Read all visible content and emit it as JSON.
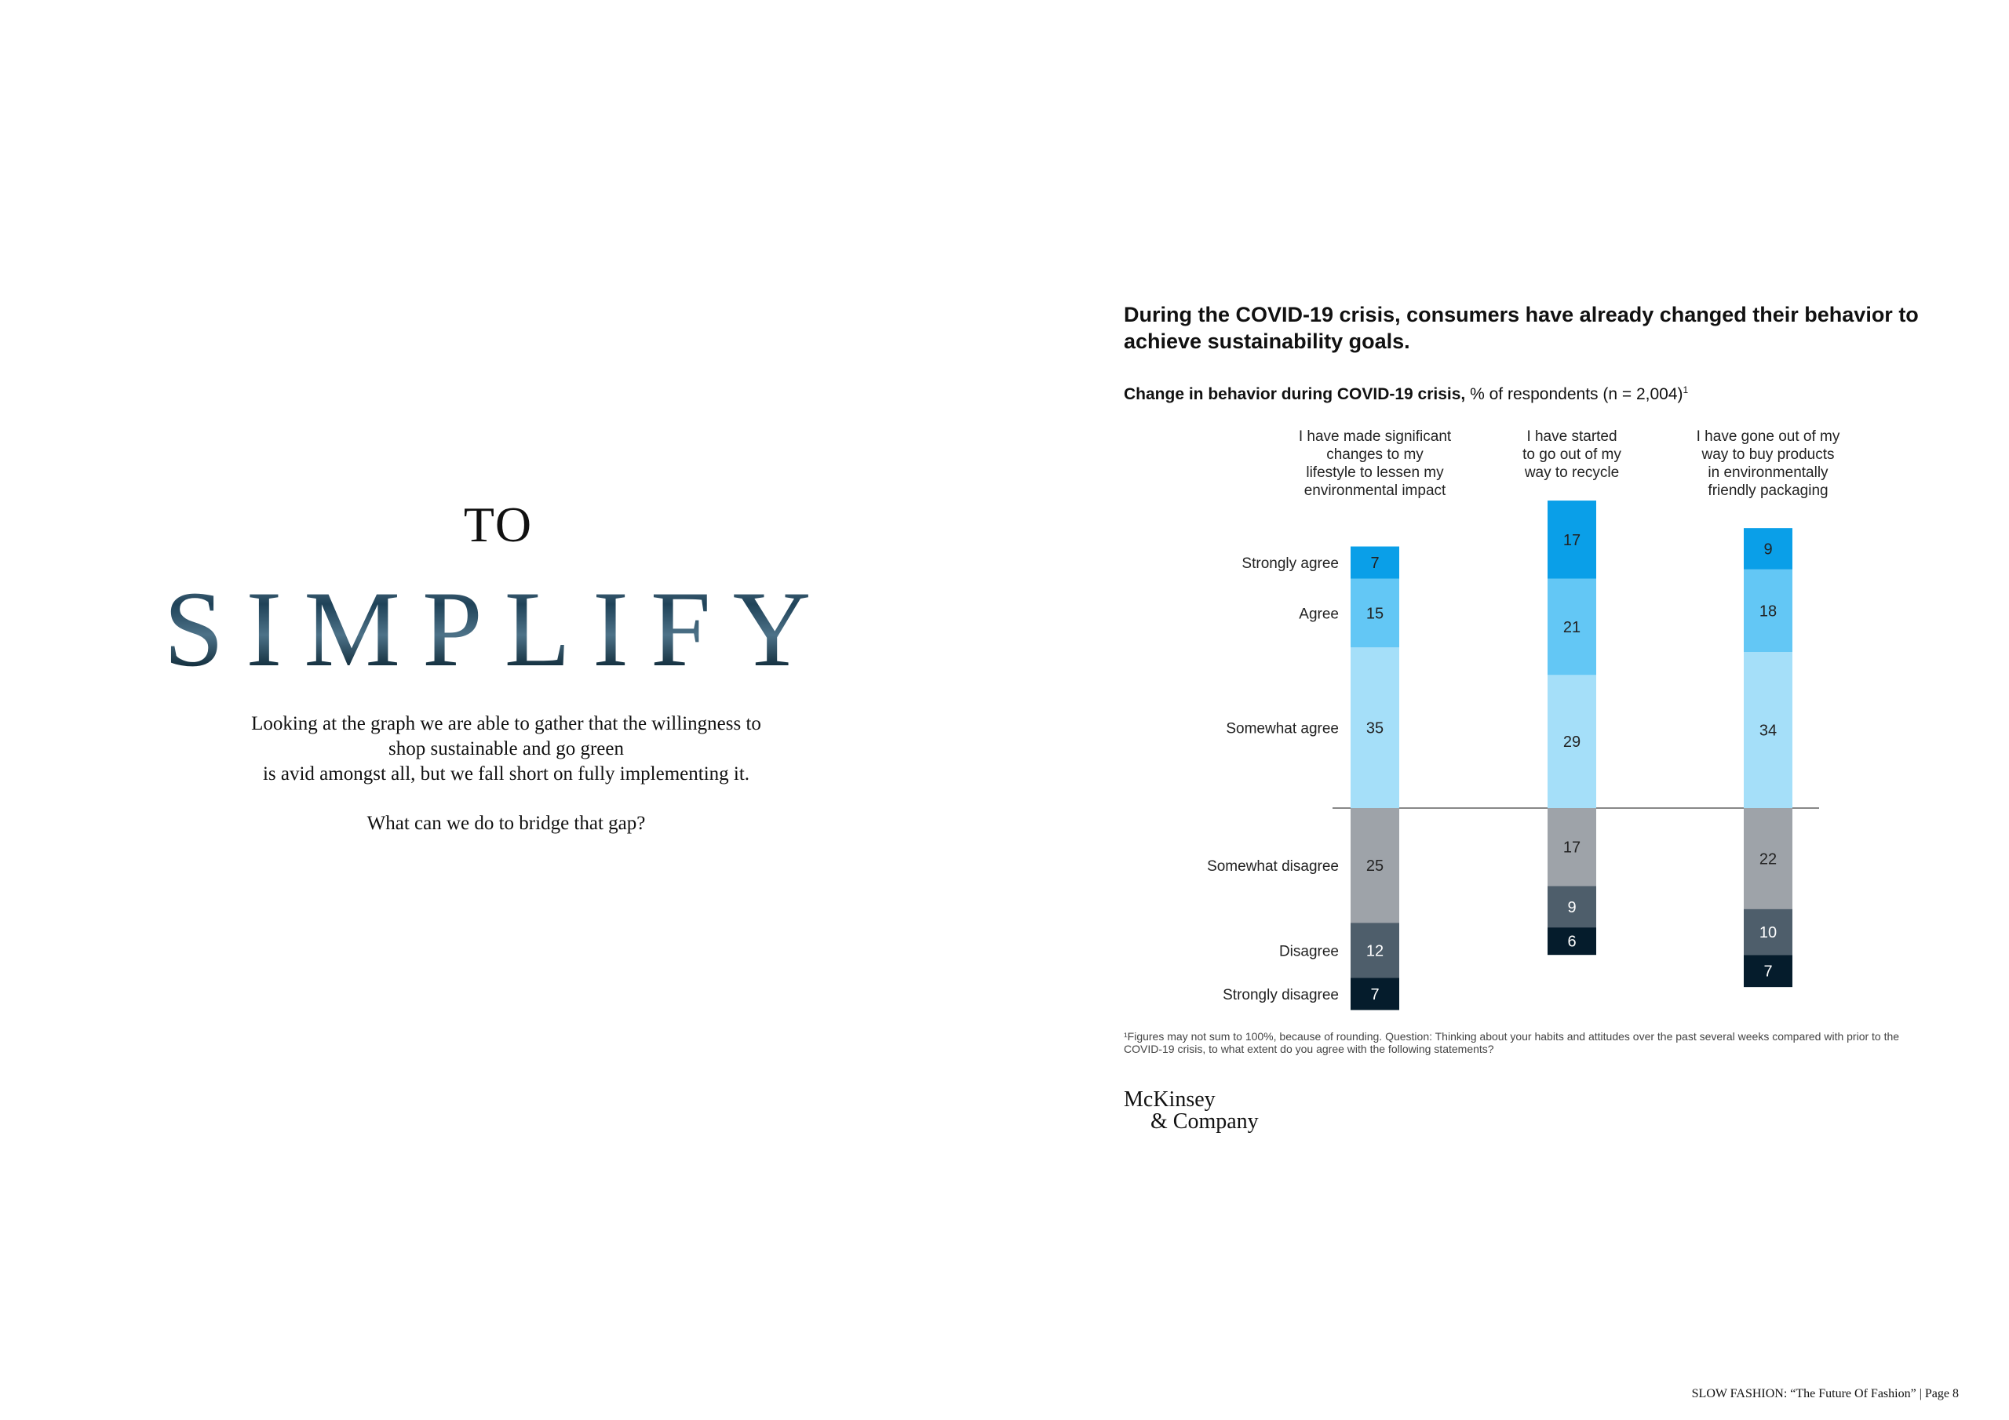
{
  "left": {
    "title_small": "TO",
    "title_big": "SIMPLIFY",
    "body_lines": [
      "Looking at the graph we are able to gather that the willingness to",
      "shop sustainable and go green",
      "is avid amongst all, but we fall short on fully implementing it."
    ],
    "question": "What can we do to bridge that gap?"
  },
  "chart_heading": "During the COVID-19 crisis, consumers have already changed their behavior to achieve sustainability goals.",
  "chart_subtitle_bold": "Change in behavior during COVID-19 crisis,",
  "chart_subtitle_rest": " % of respondents (n = 2,004)",
  "chart_subtitle_sup": "1",
  "chart_data": {
    "type": "bar",
    "stacked": "diverging",
    "categories": [
      [
        "I have made significant",
        "changes to my",
        "lifestyle to lessen my",
        "environmental impact"
      ],
      [
        "I have started",
        "to go out of my",
        "way to recycle"
      ],
      [
        "I have gone out of my",
        "way to buy products",
        "in environmentally",
        "friendly packaging"
      ]
    ],
    "series": [
      {
        "name": "Strongly agree",
        "values": [
          7,
          17,
          9
        ],
        "color": "#0a9fe8",
        "direction": "agree",
        "rank": 3
      },
      {
        "name": "Agree",
        "values": [
          15,
          21,
          18
        ],
        "color": "#63c7f5",
        "direction": "agree",
        "rank": 2
      },
      {
        "name": "Somewhat agree",
        "values": [
          35,
          29,
          34
        ],
        "color": "#a5dff9",
        "direction": "agree",
        "rank": 1
      },
      {
        "name": "Somewhat disagree",
        "values": [
          25,
          17,
          22
        ],
        "color": "#9ea3a9",
        "direction": "disagree",
        "rank": 1
      },
      {
        "name": "Disagree",
        "values": [
          12,
          9,
          10
        ],
        "color": "#4e5e6b",
        "direction": "disagree",
        "rank": 2
      },
      {
        "name": "Strongly disagree",
        "values": [
          7,
          6,
          7
        ],
        "color": "#051c2c",
        "direction": "disagree",
        "rank": 3
      }
    ],
    "legend_placement": "left",
    "ylabel": "",
    "xlabel": ""
  },
  "footnote": "¹Figures may not sum to 100%, because of rounding. Question: Thinking about your habits and attitudes over the past several weeks compared with prior to the COVID-19 crisis, to what extent do you agree with the following statements?",
  "logo": {
    "line1": "McKinsey",
    "line2": "& Company"
  },
  "page_footer": "SLOW FASHION: “The Future Of Fashion” | Page 8"
}
